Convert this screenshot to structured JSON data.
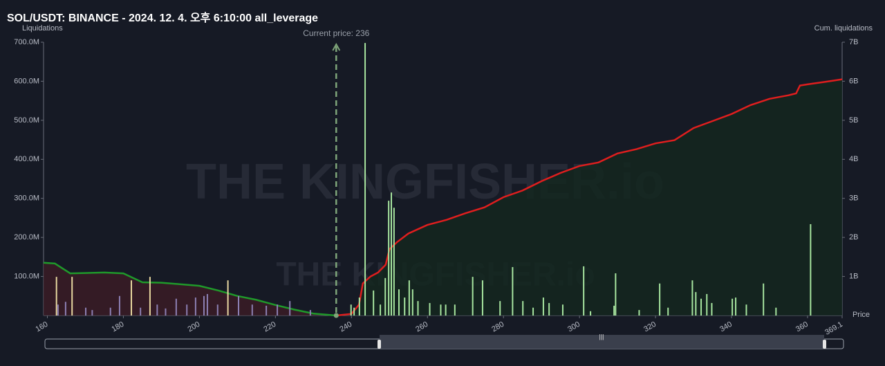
{
  "chart_data": {
    "type": "liquidation",
    "title": "SOL/USDT: BINANCE - 2024. 12. 4. 오후 6:10:00 all_leverage",
    "y_label": "Liquidations",
    "y2_label": "Cum. liquidations",
    "x_label": "Price",
    "watermark": "THE KINGFISHER.io",
    "current_price": {
      "value": 236,
      "label": "Current price: 236"
    },
    "xlim": [
      159,
      369.1
    ],
    "xticks": [
      160,
      180,
      200,
      220,
      240,
      260,
      280,
      300,
      320,
      340,
      360,
      369.1
    ],
    "ylim": [
      0,
      700
    ],
    "yticks": [
      {
        "value": 100,
        "label": "100.0M"
      },
      {
        "value": 200,
        "label": "200.0M"
      },
      {
        "value": 300,
        "label": "300.0M"
      },
      {
        "value": 400,
        "label": "400.0M"
      },
      {
        "value": 500,
        "label": "500.0M"
      },
      {
        "value": 600,
        "label": "600.0M"
      },
      {
        "value": 700,
        "label": "700.0M"
      }
    ],
    "y2lim": [
      0,
      7
    ],
    "y2ticks": [
      {
        "value": 1,
        "label": "1B"
      },
      {
        "value": 2,
        "label": "2B"
      },
      {
        "value": 3,
        "label": "3B"
      },
      {
        "value": 4,
        "label": "4B"
      },
      {
        "value": 5,
        "label": "5B"
      },
      {
        "value": 6,
        "label": "6B"
      },
      {
        "value": 7,
        "label": "7B"
      }
    ],
    "series": [
      {
        "type": "bar",
        "color": "#8c80b4",
        "colors": [
          "#e8d8a0",
          "#8c80b4",
          "#8c80b4",
          "#e8d8a0",
          "#8c80b4",
          "#8c80b4",
          "#8c80b4",
          "#8c80b4",
          "#e8d8a0",
          "#8c80b4",
          "#e8d8a0",
          "#8c80b4",
          "#8c80b4",
          "#8c80b4",
          "#8c80b4",
          "#8c80b4",
          "#8c80b4",
          "#8c80b4",
          "#8c80b4",
          "#e8d8a0",
          "#8c80b4",
          "#8c80b4",
          "#8c80b4",
          "#8c80b4",
          "#8c80b4",
          "#8c80b4"
        ],
        "x": [
          162.4,
          162.8,
          164.8,
          166.5,
          170.1,
          171.8,
          176.6,
          179.0,
          182.1,
          184.5,
          187.0,
          188.9,
          191.1,
          193.9,
          196.7,
          199.0,
          201.2,
          202.1,
          204.8,
          207.5,
          210.3,
          213.9,
          217.6,
          220.5,
          223.8,
          229.2
        ],
        "values": [
          99,
          28,
          35,
          99,
          20,
          14,
          20,
          50,
          90,
          20,
          99,
          28,
          18,
          43,
          28,
          46,
          50,
          55,
          28,
          90,
          50,
          28,
          25,
          28,
          37,
          14
        ]
      },
      {
        "type": "bar",
        "color": "#a8e6a0",
        "x": [
          239.9,
          240.7,
          242.1,
          243.6,
          245.8,
          247.6,
          248.9,
          249.8,
          250.5,
          251.2,
          252.5,
          254.0,
          255.2,
          256.1,
          257.5,
          260.6,
          263.5,
          264.8,
          267.2,
          271.9,
          274.5,
          279.1,
          282.4,
          285.1,
          287.8,
          290.5,
          292.0,
          295.6,
          301.1,
          302.9,
          309.1,
          309.5,
          315.7,
          321.1,
          323.3,
          329.7,
          330.6,
          332.0,
          333.5,
          334.8,
          340.2,
          341.1,
          343.9,
          348.4,
          351.7,
          360.8
        ],
        "values": [
          28,
          20,
          46,
          698,
          64,
          28,
          96,
          294,
          315,
          276,
          67,
          46,
          90,
          67,
          37,
          32,
          28,
          28,
          28,
          99,
          90,
          37,
          124,
          37,
          20,
          46,
          32,
          28,
          126,
          11,
          25,
          108,
          14,
          82,
          20,
          90,
          60,
          43,
          55,
          32,
          43,
          46,
          28,
          82,
          20,
          234
        ]
      },
      {
        "type": "line",
        "axis": "y2",
        "color": "#1f9a2a",
        "fill": "#3a1c26",
        "x": [
          159,
          162,
          166,
          175,
          180,
          185,
          190,
          200,
          205,
          210,
          215,
          220,
          225,
          230,
          236
        ],
        "values": [
          1.35,
          1.33,
          1.08,
          1.1,
          1.08,
          0.85,
          0.84,
          0.76,
          0.64,
          0.5,
          0.4,
          0.27,
          0.15,
          0.05,
          0
        ]
      },
      {
        "type": "line",
        "axis": "y2",
        "color": "#e01e1e",
        "fill": "#14271f",
        "x": [
          236,
          240,
          242,
          243,
          245,
          247,
          249,
          250,
          252,
          255,
          260,
          265,
          270,
          275,
          280,
          285,
          290,
          295,
          300,
          305,
          310,
          315,
          320,
          325,
          330,
          335,
          340,
          345,
          350,
          355,
          357,
          358,
          360,
          365,
          369.1
        ],
        "values": [
          0,
          0.04,
          0.28,
          0.82,
          1.0,
          1.1,
          1.3,
          1.7,
          1.88,
          2.1,
          2.32,
          2.45,
          2.62,
          2.77,
          3.03,
          3.2,
          3.44,
          3.65,
          3.83,
          3.92,
          4.15,
          4.26,
          4.41,
          4.49,
          4.8,
          4.98,
          5.16,
          5.39,
          5.55,
          5.64,
          5.69,
          5.89,
          5.92,
          5.99,
          6.05
        ]
      }
    ]
  }
}
